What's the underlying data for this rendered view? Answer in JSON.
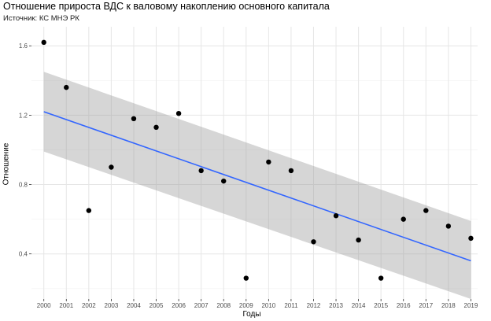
{
  "chart_data": {
    "type": "scatter",
    "title": "Отношение прироста ВДС к валовому накоплению основного капитала",
    "subtitle": "Источник: КС МНЭ РК",
    "xlabel": "Годы",
    "ylabel": "Отношение",
    "x": [
      2000,
      2001,
      2002,
      2003,
      2004,
      2005,
      2006,
      2007,
      2008,
      2009,
      2010,
      2011,
      2012,
      2013,
      2014,
      2015,
      2016,
      2017,
      2018,
      2019
    ],
    "x_tick_labels": [
      "2000",
      "2001",
      "2002",
      "2003",
      "2004",
      "2005",
      "2006",
      "2007",
      "2008",
      "2009",
      "2010",
      "2011",
      "2012",
      "2013",
      "2014",
      "2015",
      "2016",
      "2017",
      "2018",
      "2019"
    ],
    "series": [
      {
        "name": "Отношение",
        "values": [
          1.62,
          1.36,
          0.65,
          0.9,
          1.18,
          1.13,
          1.21,
          0.88,
          0.82,
          0.26,
          0.93,
          0.88,
          0.47,
          0.62,
          0.48,
          0.26,
          0.6,
          0.65,
          0.56,
          0.49
        ]
      }
    ],
    "trend": {
      "method": "linear",
      "start": [
        2000,
        1.22
      ],
      "end": [
        2019,
        0.36
      ],
      "ci_start": [
        0.99,
        1.45
      ],
      "ci_end": [
        0.14,
        0.59
      ]
    },
    "y_ticks": [
      0.4,
      0.8,
      1.2,
      1.6
    ],
    "y_tick_labels": [
      "0.4",
      "0.8",
      "1.2",
      "1.6"
    ],
    "xlim": [
      1999.45,
      2019.3
    ],
    "ylim": [
      0.14,
      1.71
    ],
    "grid": true,
    "colors": {
      "points": "#000000",
      "trend": "#3366ff",
      "ci": "#999999",
      "grid": "#e6e6e6",
      "grid_minor": "#f2f2f2"
    }
  }
}
